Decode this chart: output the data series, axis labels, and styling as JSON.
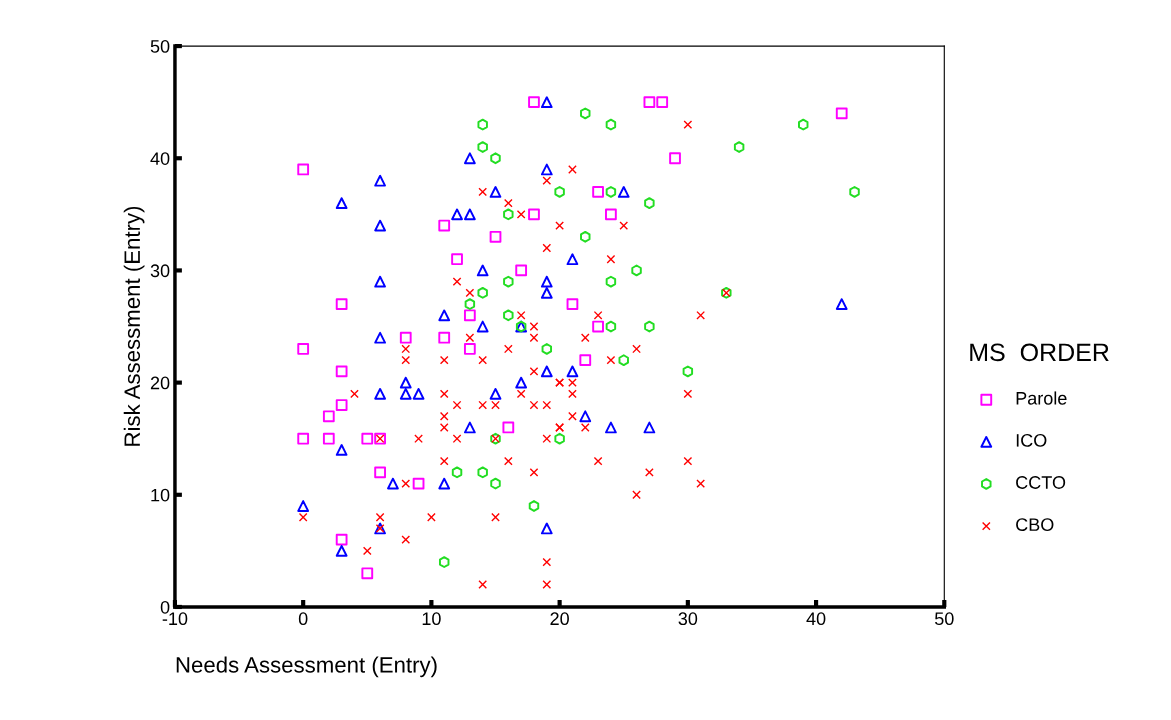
{
  "chart_data": {
    "type": "scatter",
    "xlabel": "Needs Assessment (Entry)",
    "ylabel": "Risk Assessment (Entry)",
    "legend_title": "MS  ORDER",
    "legend": "right",
    "grid": false,
    "xlim": [
      -10,
      50
    ],
    "xticks": [
      -10,
      0,
      10,
      20,
      30,
      40,
      50
    ],
    "ylim": [
      0,
      50
    ],
    "yticks": [
      0,
      10,
      20,
      30,
      40,
      50
    ],
    "series": [
      {
        "name": "Parole",
        "color": "#ff00ff",
        "marker": "square",
        "x": [
          0,
          18,
          27,
          28,
          42,
          29,
          11,
          15,
          18,
          24,
          23,
          3,
          12,
          17,
          21,
          13,
          8,
          11,
          13,
          23,
          22,
          0,
          3,
          3,
          2,
          0,
          2,
          5,
          6,
          6,
          9,
          16,
          3,
          5
        ],
        "values": [
          39,
          45,
          45,
          45,
          44,
          40,
          34,
          33,
          35,
          35,
          37,
          27,
          31,
          30,
          27,
          26,
          24,
          24,
          23,
          25,
          22,
          23,
          21,
          18,
          17,
          15,
          15,
          15,
          15,
          12,
          11,
          16,
          6,
          3
        ]
      },
      {
        "name": "ICO",
        "color": "#0000ff",
        "marker": "triangle",
        "x": [
          19,
          13,
          19,
          6,
          3,
          15,
          12,
          13,
          6,
          14,
          6,
          19,
          19,
          11,
          14,
          25,
          21,
          42,
          6,
          8,
          6,
          8,
          9,
          15,
          17,
          13,
          3,
          7,
          11,
          0,
          6,
          19,
          3,
          21,
          22,
          24,
          27,
          19,
          17
        ],
        "values": [
          45,
          40,
          39,
          38,
          36,
          37,
          35,
          35,
          34,
          30,
          29,
          29,
          28,
          26,
          25,
          37,
          31,
          27,
          24,
          20,
          19,
          19,
          19,
          19,
          20,
          16,
          14,
          11,
          11,
          9,
          7,
          7,
          5,
          21,
          17,
          16,
          16,
          21,
          25
        ]
      },
      {
        "name": "CCTO",
        "color": "#22dd22",
        "marker": "circle",
        "x": [
          14,
          14,
          15,
          20,
          16,
          16,
          14,
          13,
          16,
          22,
          24,
          39,
          34,
          24,
          27,
          43,
          22,
          24,
          26,
          33,
          24,
          27,
          17,
          19,
          15,
          20,
          12,
          14,
          15,
          18,
          11,
          25,
          30
        ],
        "values": [
          43,
          41,
          40,
          37,
          35,
          29,
          28,
          27,
          26,
          44,
          43,
          43,
          41,
          37,
          36,
          37,
          33,
          29,
          30,
          28,
          25,
          25,
          25,
          23,
          15,
          15,
          12,
          12,
          11,
          9,
          4,
          22,
          21
        ]
      },
      {
        "name": "CBO",
        "color": "#ff0000",
        "marker": "cross",
        "x": [
          19,
          14,
          16,
          17,
          20,
          19,
          12,
          13,
          17,
          30,
          21,
          25,
          24,
          33,
          23,
          31,
          13,
          18,
          18,
          8,
          16,
          8,
          11,
          14,
          18,
          20,
          4,
          11,
          17,
          12,
          14,
          15,
          18,
          19,
          11,
          11,
          20,
          6,
          9,
          12,
          15,
          19,
          11,
          16,
          18,
          8,
          0,
          6,
          10,
          15,
          6,
          8,
          5,
          19,
          14,
          19,
          22,
          26,
          24,
          20,
          21,
          21,
          30,
          21,
          20,
          22,
          23,
          30,
          27,
          31,
          26
        ],
        "values": [
          38,
          37,
          36,
          35,
          34,
          32,
          29,
          28,
          26,
          43,
          39,
          34,
          31,
          28,
          26,
          26,
          24,
          24,
          25,
          23,
          23,
          22,
          22,
          22,
          21,
          20,
          19,
          19,
          19,
          18,
          18,
          18,
          18,
          18,
          17,
          16,
          16,
          15,
          15,
          15,
          15,
          15,
          13,
          13,
          12,
          11,
          8,
          8,
          8,
          8,
          7,
          6,
          5,
          4,
          2,
          2,
          24,
          23,
          22,
          20,
          20,
          19,
          19,
          17,
          16,
          16,
          13,
          13,
          12,
          11,
          10
        ]
      }
    ]
  }
}
